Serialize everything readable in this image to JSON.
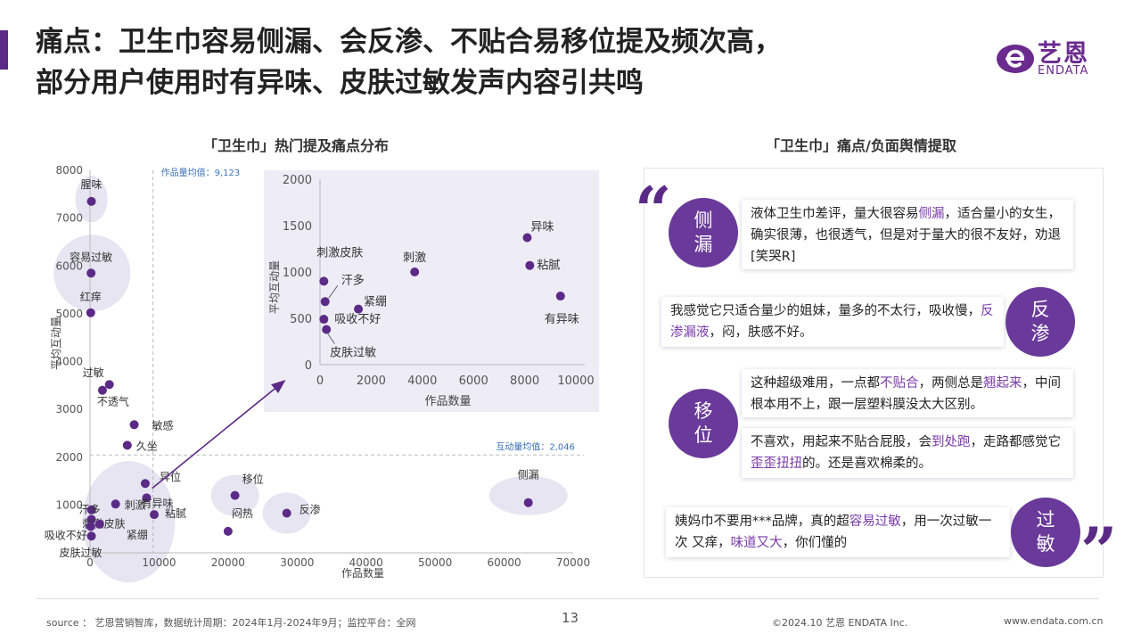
{
  "title": {
    "line1": "痛点：卫生巾容易侧漏、会反渗、不贴合易移位提及频次高，",
    "line2": "部分用户使用时有异味、皮肤过敏发声内容引共鸣"
  },
  "logo": {
    "name": "艺恩",
    "sub": "ENDATA"
  },
  "left_title": "「卫生巾」热门提及痛点分布",
  "right_title": "「卫生巾」痛点/负面舆情提取",
  "chart_data": [
    {
      "type": "scatter",
      "title": "「卫生巾」热门提及痛点分布",
      "xlabel": "作品数量",
      "ylabel": "平均互动量",
      "xlim": [
        0,
        70000
      ],
      "ylim": [
        0,
        8000
      ],
      "xticks": [
        0,
        10000,
        20000,
        30000,
        40000,
        50000,
        60000,
        70000
      ],
      "yticks": [
        1000,
        2000,
        3000,
        4000,
        5000,
        6000,
        7000,
        8000
      ],
      "x_mean_label": "作品量均值：9,123",
      "x_mean": 9123,
      "y_mean_label": "互动量均值：2,046",
      "y_mean": 2046,
      "points": [
        {
          "label": "腥味",
          "x": 200,
          "y": 7350
        },
        {
          "label": "容易过敏",
          "x": 150,
          "y": 5850
        },
        {
          "label": "红痒",
          "x": 100,
          "y": 5020
        },
        {
          "label": "过敏",
          "x": 2800,
          "y": 3520
        },
        {
          "label": "不透气",
          "x": 1800,
          "y": 3400
        },
        {
          "label": "敏感",
          "x": 6400,
          "y": 2680
        },
        {
          "label": "久坐",
          "x": 5400,
          "y": 2250
        },
        {
          "label": "异位",
          "x": 8000,
          "y": 1450
        },
        {
          "label": "有异味",
          "x": 8200,
          "y": 1150
        },
        {
          "label": "刺激",
          "x": 3700,
          "y": 1020
        },
        {
          "label": "粘腻",
          "x": 9300,
          "y": 800
        },
        {
          "label": "汗多",
          "x": 200,
          "y": 900
        },
        {
          "label": "刺激皮肤",
          "x": 200,
          "y": 700
        },
        {
          "label": "吸收不好",
          "x": 100,
          "y": 550
        },
        {
          "label": "紧绷",
          "x": 1400,
          "y": 600
        },
        {
          "label": "皮肤过敏",
          "x": 200,
          "y": 350
        },
        {
          "label": "移位",
          "x": 21000,
          "y": 1200
        },
        {
          "label": "闷热",
          "x": 20000,
          "y": 450
        },
        {
          "label": "反渗",
          "x": 28500,
          "y": 830
        },
        {
          "label": "侧漏",
          "x": 63500,
          "y": 1050
        }
      ]
    },
    {
      "type": "scatter",
      "xlabel": "作品数量",
      "ylabel": "平均互动量",
      "xlim": [
        0,
        10000
      ],
      "ylim": [
        0,
        2000
      ],
      "xticks": [
        0,
        2000,
        4000,
        6000,
        8000,
        10000
      ],
      "yticks": [
        0,
        500,
        1000,
        1500,
        2000
      ],
      "points": [
        {
          "label": "异味",
          "x": 8100,
          "y": 1370
        },
        {
          "label": "粘腻",
          "x": 8200,
          "y": 1070
        },
        {
          "label": "有异味",
          "x": 9400,
          "y": 740
        },
        {
          "label": "刺激",
          "x": 3700,
          "y": 1000
        },
        {
          "label": "刺激皮肤",
          "x": 150,
          "y": 900
        },
        {
          "label": "汗多",
          "x": 200,
          "y": 680
        },
        {
          "label": "紧绷",
          "x": 1500,
          "y": 600
        },
        {
          "label": "吸收不好",
          "x": 150,
          "y": 490
        },
        {
          "label": "皮肤过敏",
          "x": 250,
          "y": 380
        }
      ]
    }
  ],
  "quotes": [
    {
      "tag_line1": "侧",
      "tag_line2": "漏",
      "parts": [
        {
          "t": "液体卫生巾差评，量大很容易"
        },
        {
          "t": "侧漏",
          "h": true
        },
        {
          "t": "，适合量小的女生，确实很薄，也很透气，但是对于量大的很不友好，劝退[笑哭R]"
        }
      ]
    },
    {
      "tag_line1": "反",
      "tag_line2": "渗",
      "parts": [
        {
          "t": "我感觉它只适合量少的姐妹，量多的不太行，吸收慢，"
        },
        {
          "t": "反渗漏液",
          "h": true
        },
        {
          "t": "，闷，肤感不好。"
        }
      ]
    },
    {
      "tag_line1": "移",
      "tag_line2": "位",
      "parts": [
        {
          "t": "这种超级难用，一点都"
        },
        {
          "t": "不贴合",
          "h": true
        },
        {
          "t": "，两侧总是"
        },
        {
          "t": "翘起来",
          "h": true
        },
        {
          "t": "，中间根本用不上，跟一层塑料膜没太大区别。"
        }
      ],
      "parts2": [
        {
          "t": "不喜欢，用起来不贴合屁股，会"
        },
        {
          "t": "到处跑",
          "h": true
        },
        {
          "t": "，走路都感觉它"
        },
        {
          "t": "歪歪扭扭",
          "h": true
        },
        {
          "t": "的。还是喜欢棉柔的。"
        }
      ]
    },
    {
      "tag_line1": "过",
      "tag_line2": "敏",
      "parts": [
        {
          "t": "姨妈巾不要用***品牌，真的超"
        },
        {
          "t": "容易过敏",
          "h": true
        },
        {
          "t": "，用一次过敏一次 又痒，"
        },
        {
          "t": "味道又大",
          "h": true
        },
        {
          "t": "，你们懂的"
        }
      ]
    }
  ],
  "footer": {
    "source": "source ： 艺恩营销智库，数据统计周期：2024年1月-2024年9月；监控平台：全网",
    "page": "13",
    "copyright": "©2024.10  艺恩 ENDATA Inc.",
    "url": "www.endata.com.cn"
  },
  "colors": {
    "accent": "#5b2a86",
    "point": "#5b2a86",
    "cluster": "#e2e0ef"
  }
}
